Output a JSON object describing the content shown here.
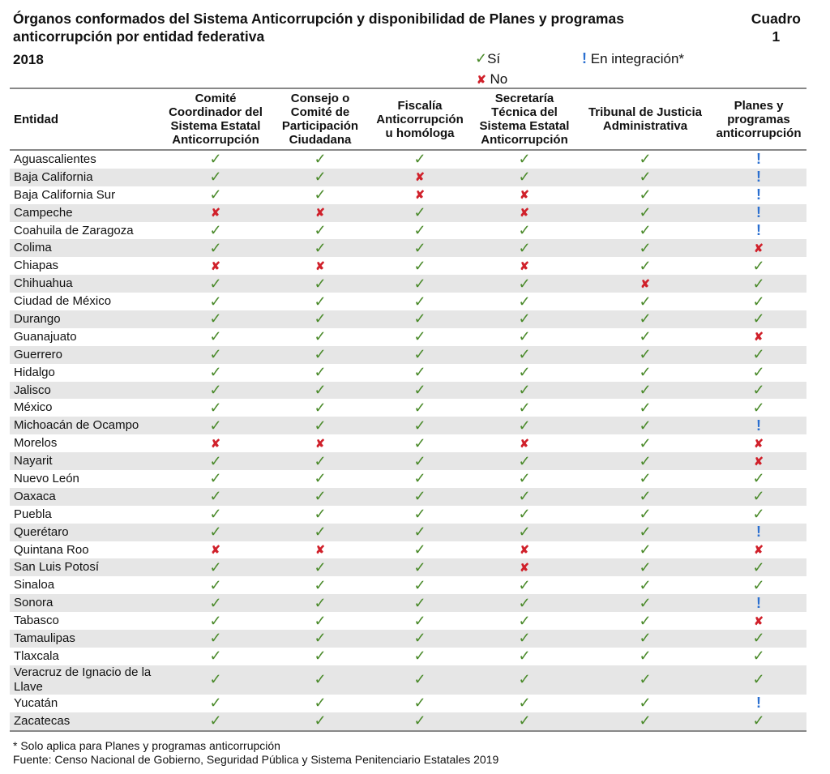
{
  "title": "Órganos conformados del Sistema Anticorrupción y disponibilidad de Planes y programas anticorrupción por entidad federativa",
  "cuadro": {
    "label": "Cuadro",
    "number": "1"
  },
  "year": "2018",
  "legend": {
    "si": "Sí",
    "no": "No",
    "int": "En integración*"
  },
  "colors": {
    "si": "#4a8a2a",
    "no": "#d0202a",
    "int": "#2a6fd0",
    "stripe": "#e6e6e6"
  },
  "icons": {
    "si": "checkmark-icon",
    "no": "cross-icon",
    "int": "exclamation-icon"
  },
  "columns": [
    "Entidad",
    "Comité Coordinador del Sistema Estatal Anticorrupción",
    "Consejo o Comité de Participación Ciudadana",
    "Fiscalía Anticorrupción u homóloga",
    "Secretaría Técnica del Sistema Estatal Anticorrupción",
    "Tribunal de Justicia Administrativa",
    "Planes y programas anticorrupción"
  ],
  "rows": [
    {
      "entidad": "Aguascalientes",
      "v": [
        "si",
        "si",
        "si",
        "si",
        "si",
        "int"
      ]
    },
    {
      "entidad": "Baja California",
      "v": [
        "si",
        "si",
        "no",
        "si",
        "si",
        "int"
      ]
    },
    {
      "entidad": "Baja California Sur",
      "v": [
        "si",
        "si",
        "no",
        "no",
        "si",
        "int"
      ]
    },
    {
      "entidad": "Campeche",
      "v": [
        "no",
        "no",
        "si",
        "no",
        "si",
        "int"
      ]
    },
    {
      "entidad": "Coahuila de Zaragoza",
      "v": [
        "si",
        "si",
        "si",
        "si",
        "si",
        "int"
      ]
    },
    {
      "entidad": "Colima",
      "v": [
        "si",
        "si",
        "si",
        "si",
        "si",
        "no"
      ]
    },
    {
      "entidad": "Chiapas",
      "v": [
        "no",
        "no",
        "si",
        "no",
        "si",
        "si"
      ]
    },
    {
      "entidad": "Chihuahua",
      "v": [
        "si",
        "si",
        "si",
        "si",
        "no",
        "si"
      ]
    },
    {
      "entidad": "Ciudad de México",
      "v": [
        "si",
        "si",
        "si",
        "si",
        "si",
        "si"
      ]
    },
    {
      "entidad": "Durango",
      "v": [
        "si",
        "si",
        "si",
        "si",
        "si",
        "si"
      ]
    },
    {
      "entidad": "Guanajuato",
      "v": [
        "si",
        "si",
        "si",
        "si",
        "si",
        "no"
      ]
    },
    {
      "entidad": "Guerrero",
      "v": [
        "si",
        "si",
        "si",
        "si",
        "si",
        "si"
      ]
    },
    {
      "entidad": "Hidalgo",
      "v": [
        "si",
        "si",
        "si",
        "si",
        "si",
        "si"
      ]
    },
    {
      "entidad": "Jalisco",
      "v": [
        "si",
        "si",
        "si",
        "si",
        "si",
        "si"
      ]
    },
    {
      "entidad": "México",
      "v": [
        "si",
        "si",
        "si",
        "si",
        "si",
        "si"
      ]
    },
    {
      "entidad": "Michoacán de Ocampo",
      "v": [
        "si",
        "si",
        "si",
        "si",
        "si",
        "int"
      ]
    },
    {
      "entidad": "Morelos",
      "v": [
        "no",
        "no",
        "si",
        "no",
        "si",
        "no"
      ]
    },
    {
      "entidad": "Nayarit",
      "v": [
        "si",
        "si",
        "si",
        "si",
        "si",
        "no"
      ]
    },
    {
      "entidad": "Nuevo León",
      "v": [
        "si",
        "si",
        "si",
        "si",
        "si",
        "si"
      ]
    },
    {
      "entidad": "Oaxaca",
      "v": [
        "si",
        "si",
        "si",
        "si",
        "si",
        "si"
      ]
    },
    {
      "entidad": "Puebla",
      "v": [
        "si",
        "si",
        "si",
        "si",
        "si",
        "si"
      ]
    },
    {
      "entidad": "Querétaro",
      "v": [
        "si",
        "si",
        "si",
        "si",
        "si",
        "int"
      ]
    },
    {
      "entidad": "Quintana Roo",
      "v": [
        "no",
        "no",
        "si",
        "no",
        "si",
        "no"
      ]
    },
    {
      "entidad": "San Luis Potosí",
      "v": [
        "si",
        "si",
        "si",
        "no",
        "si",
        "si"
      ]
    },
    {
      "entidad": "Sinaloa",
      "v": [
        "si",
        "si",
        "si",
        "si",
        "si",
        "si"
      ]
    },
    {
      "entidad": "Sonora",
      "v": [
        "si",
        "si",
        "si",
        "si",
        "si",
        "int"
      ]
    },
    {
      "entidad": "Tabasco",
      "v": [
        "si",
        "si",
        "si",
        "si",
        "si",
        "no"
      ]
    },
    {
      "entidad": "Tamaulipas",
      "v": [
        "si",
        "si",
        "si",
        "si",
        "si",
        "si"
      ]
    },
    {
      "entidad": "Tlaxcala",
      "v": [
        "si",
        "si",
        "si",
        "si",
        "si",
        "si"
      ]
    },
    {
      "entidad": "Veracruz de Ignacio de la Llave",
      "v": [
        "si",
        "si",
        "si",
        "si",
        "si",
        "si"
      ]
    },
    {
      "entidad": "Yucatán",
      "v": [
        "si",
        "si",
        "si",
        "si",
        "si",
        "int"
      ]
    },
    {
      "entidad": "Zacatecas",
      "v": [
        "si",
        "si",
        "si",
        "si",
        "si",
        "si"
      ]
    }
  ],
  "footnotes": [
    "* Solo aplica para Planes y programas anticorrupción",
    "Fuente: Censo Nacional de Gobierno, Seguridad Pública y Sistema Penitenciario Estatales 2019"
  ]
}
